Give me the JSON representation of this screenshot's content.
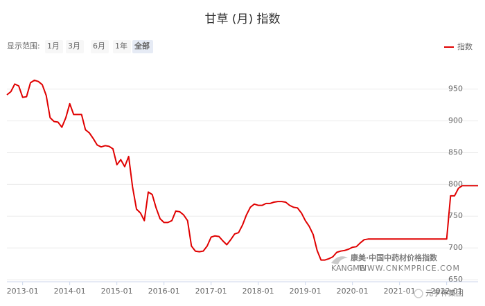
{
  "chart_data": {
    "type": "line",
    "title": "甘草 (月) 指数",
    "range_selector": {
      "label": "显示范围:",
      "buttons": [
        "1月",
        "3月",
        "6月",
        "1年",
        "全部"
      ],
      "disabled": [
        true,
        true,
        false,
        false,
        false
      ],
      "selected_index": 4
    },
    "legend_position": "top-right",
    "grid": true,
    "x": [
      "2012-09",
      "2012-10",
      "2012-11",
      "2012-12",
      "2013-01",
      "2013-02",
      "2013-03",
      "2013-04",
      "2013-05",
      "2013-06",
      "2013-07",
      "2013-08",
      "2013-09",
      "2013-10",
      "2013-11",
      "2013-12",
      "2014-01",
      "2014-02",
      "2014-03",
      "2014-04",
      "2014-05",
      "2014-06",
      "2014-07",
      "2014-08",
      "2014-09",
      "2014-10",
      "2014-11",
      "2014-12",
      "2015-01",
      "2015-02",
      "2015-03",
      "2015-04",
      "2015-05",
      "2015-06",
      "2015-07",
      "2015-08",
      "2015-09",
      "2015-10",
      "2015-11",
      "2015-12",
      "2016-01",
      "2016-02",
      "2016-03",
      "2016-04",
      "2016-05",
      "2016-06",
      "2016-07",
      "2016-08",
      "2016-09",
      "2016-10",
      "2016-11",
      "2016-12",
      "2017-01",
      "2017-02",
      "2017-03",
      "2017-04",
      "2017-05",
      "2017-06",
      "2017-07",
      "2017-08",
      "2017-09",
      "2017-10",
      "2017-11",
      "2017-12",
      "2018-01",
      "2018-02",
      "2018-03",
      "2018-04",
      "2018-05",
      "2018-06",
      "2018-07",
      "2018-08",
      "2018-09",
      "2018-10",
      "2018-11",
      "2018-12",
      "2019-01",
      "2019-02",
      "2019-03",
      "2019-04",
      "2019-05",
      "2019-06",
      "2019-07",
      "2019-08",
      "2019-09",
      "2019-10",
      "2019-11",
      "2019-12",
      "2020-01",
      "2020-02",
      "2020-03",
      "2020-04",
      "2020-05",
      "2020-06",
      "2020-07",
      "2020-08",
      "2020-09",
      "2020-10",
      "2020-11",
      "2020-12",
      "2021-01",
      "2021-02",
      "2021-03",
      "2021-04",
      "2021-05",
      "2021-06",
      "2021-07",
      "2021-08",
      "2021-09",
      "2021-10",
      "2021-11",
      "2021-12",
      "2022-01",
      "2022-02",
      "2022-03",
      "2022-04",
      "2022-05",
      "2022-06",
      "2022-07",
      "2022-08",
      "2022-09"
    ],
    "series": [
      {
        "name": "指数",
        "color": "#e00000",
        "values": [
          941,
          946,
          958,
          955,
          937,
          938,
          960,
          964,
          962,
          957,
          940,
          905,
          899,
          898,
          890,
          905,
          927,
          910,
          910,
          910,
          886,
          881,
          872,
          862,
          859,
          861,
          860,
          856,
          831,
          839,
          828,
          844,
          796,
          761,
          755,
          743,
          788,
          784,
          763,
          746,
          740,
          740,
          743,
          758,
          757,
          752,
          743,
          703,
          695,
          694,
          695,
          703,
          717,
          719,
          718,
          711,
          705,
          713,
          722,
          724,
          736,
          752,
          764,
          769,
          767,
          767,
          770,
          770,
          772,
          773,
          773,
          772,
          767,
          764,
          763,
          755,
          743,
          734,
          721,
          696,
          681,
          681,
          683,
          686,
          693,
          695,
          696,
          698,
          701,
          702,
          708,
          713,
          714,
          714,
          714,
          714,
          714,
          714,
          714,
          714,
          714,
          714,
          714,
          714,
          714,
          714,
          714,
          714,
          714,
          714,
          714,
          714,
          714,
          782,
          782,
          794,
          798,
          798,
          798,
          798,
          798
        ]
      }
    ],
    "ylim": [
      650,
      990
    ],
    "yticks": [
      650,
      700,
      750,
      800,
      850,
      900,
      950
    ],
    "xticks": [
      "2013-01",
      "2014-01",
      "2015-01",
      "2016-01",
      "2017-01",
      "2018-01",
      "2019-01",
      "2020-01",
      "2021-01",
      "2022-01"
    ],
    "watermark": [
      "康美·中国中药材价格指数",
      "KANGMEI",
      "WWW.CNKMPRICE.COM"
    ],
    "credit": "元亨神集团"
  }
}
